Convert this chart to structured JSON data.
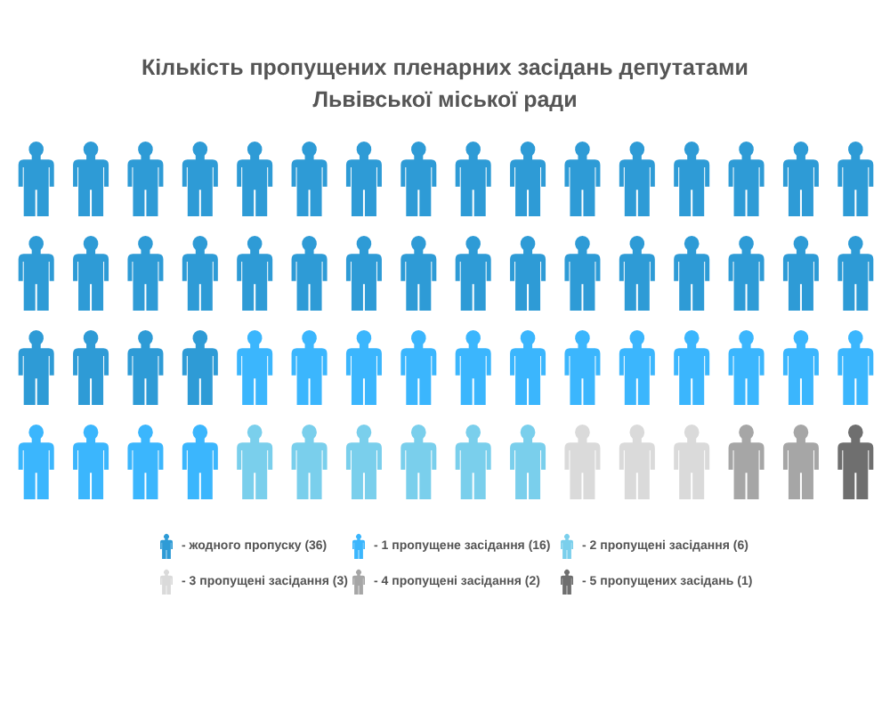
{
  "chart_data": {
    "type": "other",
    "title": "Кількість пропущених пленарних засідань депутатами Львівської міської ради",
    "categories": [
      "- жодного пропуску",
      "- 1 пропущене засідання",
      "- 2 пропущені засідання",
      "- 3 пропущені засідання",
      "- 4 пропущені засідання",
      "- 5 пропущених засідань"
    ],
    "values": [
      36,
      16,
      6,
      3,
      2,
      1
    ],
    "value_labels": [
      "(36)",
      "(16)",
      "(6)",
      "(3)",
      "(2)",
      "(1)"
    ],
    "colors": [
      "#2e9bd6",
      "#3bb6fd",
      "#7acfec",
      "#dadada",
      "#a6a6a6",
      "#6f6f6f"
    ]
  }
}
